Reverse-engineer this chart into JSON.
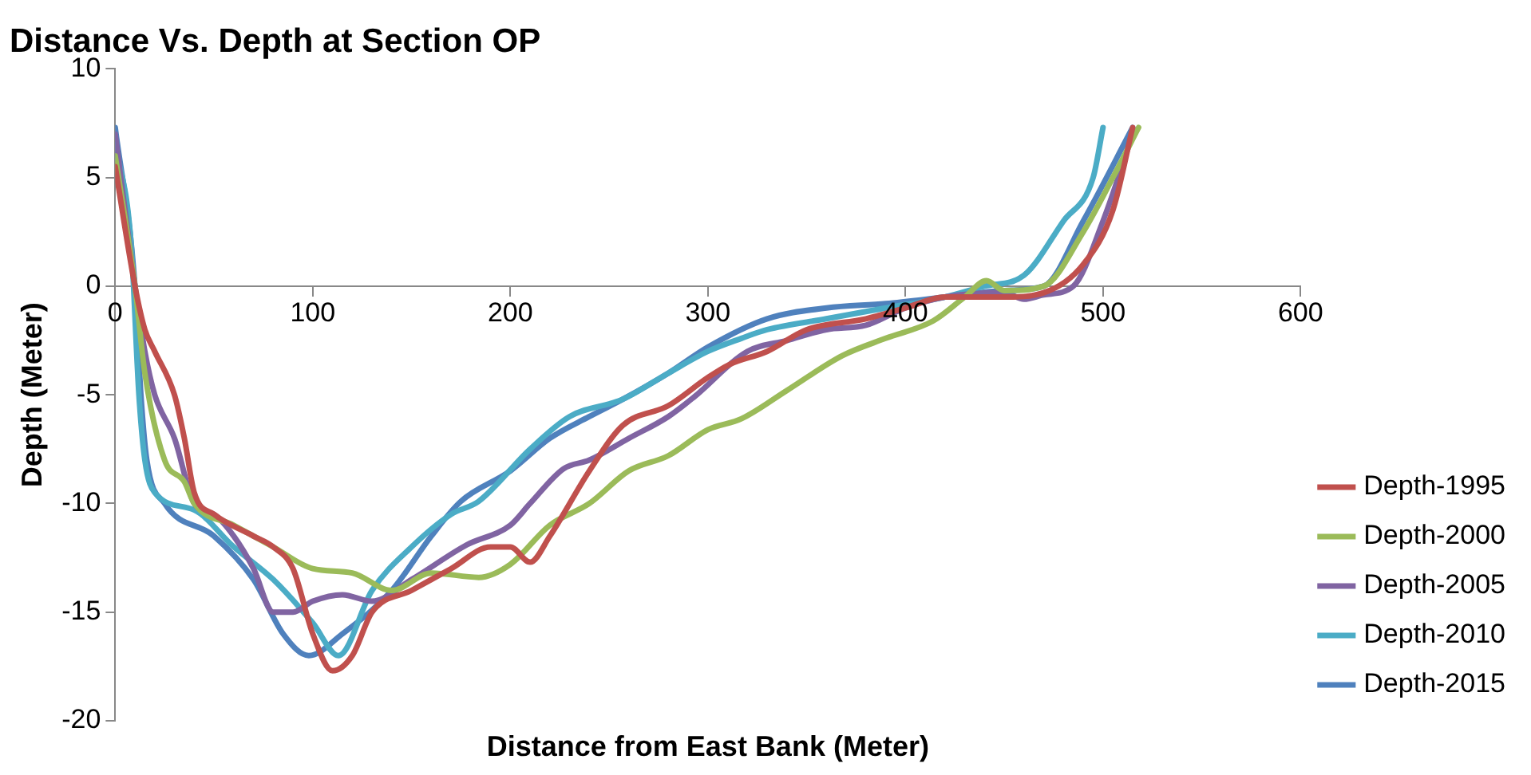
{
  "chart_data": {
    "type": "line",
    "title": "Distance Vs. Depth at Section OP",
    "xlabel": "Distance from East Bank (Meter)",
    "ylabel": "Depth (Meter)",
    "xlim": [
      0,
      600
    ],
    "xticks": [
      0,
      100,
      200,
      300,
      400,
      500,
      600
    ],
    "ylim": [
      -20,
      10
    ],
    "yticks": [
      -20,
      -15,
      -10,
      -5,
      0,
      5,
      10
    ],
    "grid": false,
    "legend": "bottom right",
    "marker": "none",
    "line_style": "solid",
    "series": [
      {
        "name": "Depth-1995",
        "color": "#c0504d",
        "x": [
          0,
          10,
          15,
          20,
          30,
          35,
          40,
          50,
          70,
          80,
          90,
          100,
          110,
          120,
          130,
          150,
          170,
          190,
          200,
          210,
          220,
          240,
          257,
          280,
          300,
          311,
          330,
          350,
          380,
          400,
          420,
          450,
          470,
          490,
          505,
          515
        ],
        "values": [
          5.5,
          0,
          -2,
          -3,
          -5,
          -7,
          -9.5,
          -10.5,
          -11.5,
          -12,
          -13,
          -16,
          -17.7,
          -17,
          -15,
          -14,
          -13,
          -12,
          -12,
          -12.7,
          -11.5,
          -8.5,
          -6.4,
          -5.5,
          -4.2,
          -3.6,
          -3,
          -2,
          -1.5,
          -1,
          -0.5,
          -0.5,
          -0.3,
          1,
          3.5,
          7.3
        ]
      },
      {
        "name": "Depth-2000",
        "color": "#9bbb59",
        "x": [
          0,
          10,
          15,
          25,
          35,
          40,
          60,
          80,
          100,
          120,
          140,
          160,
          184,
          200,
          220,
          240,
          260,
          280,
          300,
          317,
          340,
          368,
          390,
          414,
          430,
          441,
          450,
          470,
          490,
          505,
          518
        ],
        "values": [
          6,
          0,
          -4,
          -8,
          -9,
          -10,
          -11,
          -12,
          -13,
          -13.2,
          -14,
          -13.2,
          -13.4,
          -12.8,
          -11,
          -10,
          -8.5,
          -7.8,
          -6.6,
          -6.1,
          -4.8,
          -3.2,
          -2.4,
          -1.6,
          -0.5,
          0.25,
          -0.2,
          0,
          2.5,
          5,
          7.3
        ]
      },
      {
        "name": "Depth-2005",
        "color": "#8064a2",
        "x": [
          0,
          10,
          15,
          20,
          30,
          40,
          50,
          60,
          70,
          80,
          90,
          100,
          115,
          130,
          150,
          178,
          200,
          210,
          227,
          240,
          260,
          280,
          293,
          320,
          340,
          360,
          380,
          400,
          420,
          450,
          460,
          470,
          485,
          500,
          515
        ],
        "values": [
          7,
          0,
          -3,
          -5,
          -7,
          -10,
          -10.5,
          -11.5,
          -13,
          -15,
          -15,
          -14.5,
          -14.2,
          -14.5,
          -13.5,
          -11.9,
          -11,
          -10,
          -8.4,
          -8,
          -7,
          -6,
          -5.1,
          -3,
          -2.5,
          -2,
          -1.8,
          -1,
          -0.5,
          -0.3,
          -0.6,
          -0.4,
          0,
          3,
          7
        ]
      },
      {
        "name": "Depth-2010",
        "color": "#4bacc6",
        "x": [
          0,
          8,
          12,
          15,
          20,
          40,
          60,
          80,
          100,
          113,
          130,
          150,
          170,
          184,
          210,
          230,
          257,
          280,
          300,
          317,
          330,
          360,
          390,
          420,
          440,
          460,
          480,
          495,
          500
        ],
        "values": [
          6.5,
          2,
          -5,
          -8,
          -9.5,
          -10.3,
          -12,
          -13.5,
          -15.5,
          -17,
          -14,
          -12,
          -10.5,
          -9.9,
          -7.5,
          -6,
          -5.2,
          -4,
          -3,
          -2.4,
          -2,
          -1.5,
          -1,
          -0.5,
          0,
          0.5,
          3,
          5,
          7.3
        ]
      },
      {
        "name": "Depth-2015",
        "color": "#4f81bd",
        "x": [
          0,
          10,
          13,
          16,
          25,
          50,
          70,
          85,
          98,
          115,
          140,
          160,
          175,
          200,
          220,
          240,
          257,
          280,
          300,
          330,
          360,
          390,
          420,
          450,
          470,
          490,
          515
        ],
        "values": [
          7.3,
          0,
          -5,
          -8,
          -10,
          -11.5,
          -13.5,
          -16,
          -17,
          -16,
          -14,
          -11.5,
          -9.9,
          -8.5,
          -7,
          -6,
          -5.2,
          -4,
          -2.8,
          -1.5,
          -1,
          -0.8,
          -0.5,
          -0.2,
          0,
          3,
          7.3
        ]
      }
    ]
  }
}
